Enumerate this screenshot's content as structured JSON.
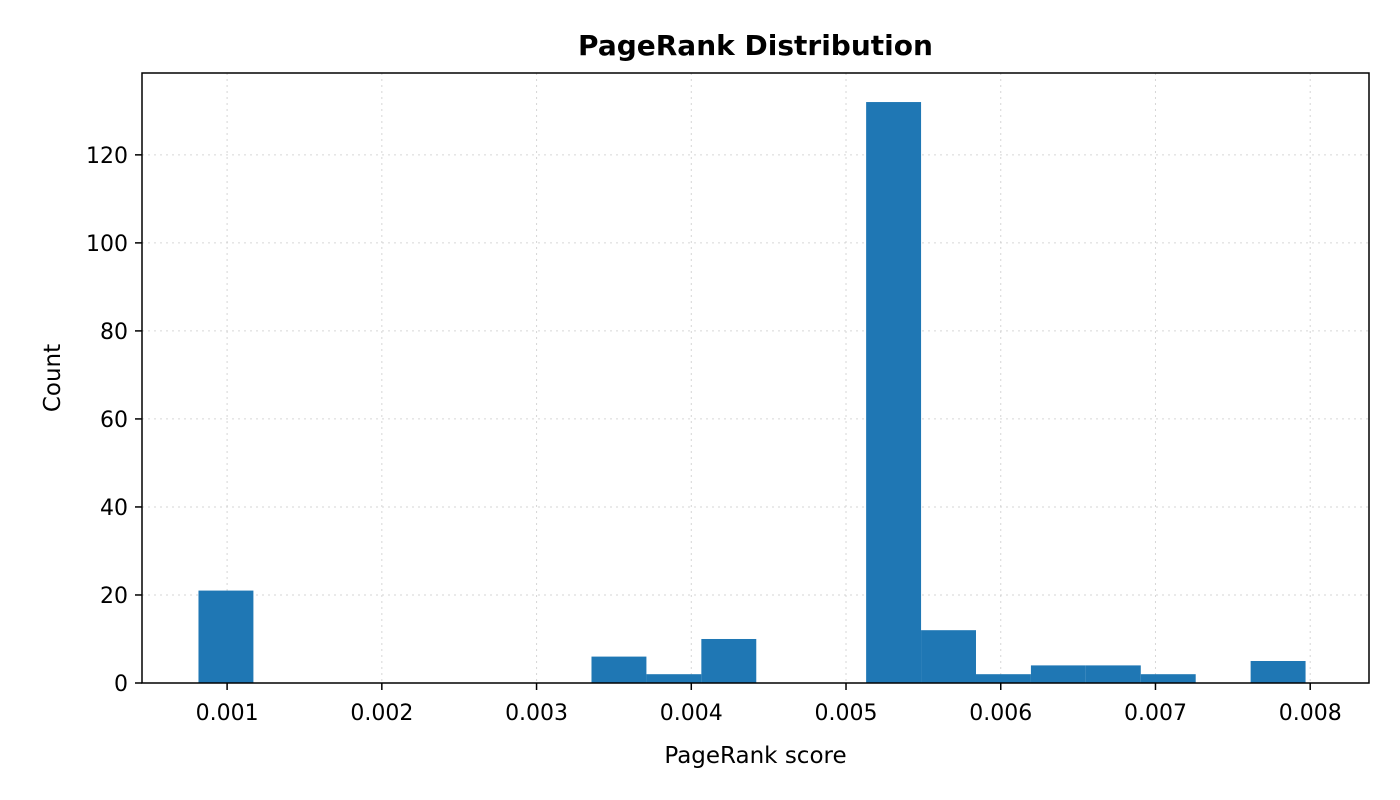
{
  "chart_data": {
    "type": "bar",
    "subtype": "histogram",
    "title": "PageRank Distribution",
    "xlabel": "PageRank score",
    "ylabel": "Count",
    "xlim": [
      0.00045,
      0.00838
    ],
    "ylim": [
      0,
      138.6
    ],
    "x_ticks": [
      0.001,
      0.002,
      0.003,
      0.004,
      0.005,
      0.006,
      0.007,
      0.008
    ],
    "x_tick_labels": [
      "0.001",
      "0.002",
      "0.003",
      "0.004",
      "0.005",
      "0.006",
      "0.007",
      "0.008"
    ],
    "y_ticks": [
      0,
      20,
      40,
      60,
      80,
      100,
      120
    ],
    "y_tick_labels": [
      "0",
      "20",
      "40",
      "60",
      "80",
      "100",
      "120"
    ],
    "grid": true,
    "bar_color": "#1f77b4",
    "bin_edges": [
      0.000815,
      0.00117,
      0.001525,
      0.00188,
      0.002235,
      0.00259,
      0.002945,
      0.0033,
      0.003355,
      0.00371,
      0.004065,
      0.00442,
      0.004775,
      0.00513,
      0.005485,
      0.00584,
      0.006195,
      0.00655,
      0.006905,
      0.00726,
      0.007615,
      0.00797
    ],
    "bins": [
      {
        "x0": 0.000815,
        "x1": 0.00117,
        "count": 21
      },
      {
        "x0": 0.003355,
        "x1": 0.00371,
        "count": 6
      },
      {
        "x0": 0.00371,
        "x1": 0.004065,
        "count": 2
      },
      {
        "x0": 0.004065,
        "x1": 0.00442,
        "count": 10
      },
      {
        "x0": 0.00513,
        "x1": 0.005485,
        "count": 132
      },
      {
        "x0": 0.005485,
        "x1": 0.00584,
        "count": 12
      },
      {
        "x0": 0.00584,
        "x1": 0.006195,
        "count": 2
      },
      {
        "x0": 0.006195,
        "x1": 0.00655,
        "count": 4
      },
      {
        "x0": 0.00655,
        "x1": 0.006905,
        "count": 4
      },
      {
        "x0": 0.006905,
        "x1": 0.00726,
        "count": 2
      },
      {
        "x0": 0.007615,
        "x1": 0.00797,
        "count": 5
      }
    ]
  }
}
